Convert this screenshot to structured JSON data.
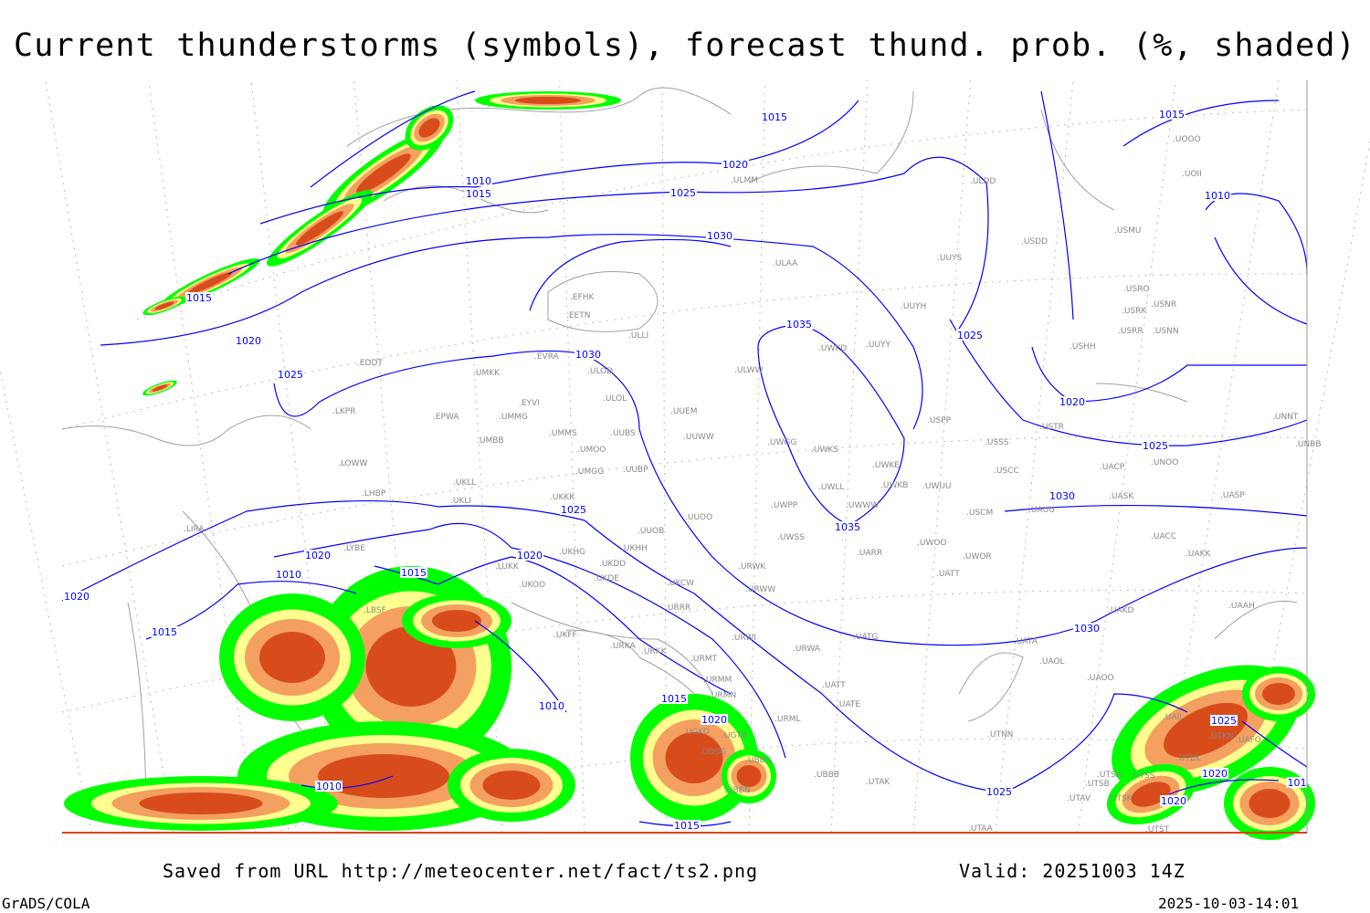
{
  "title": "Current thunderstorms (symbols), forecast thund. prob. (%, shaded)",
  "footer": {
    "source": "Saved from URL http://meteocenter.net/fact/ts2.png",
    "valid": "Valid: 20251003 14Z",
    "software": "GrADS/COLA",
    "timestamp": "2025-10-03-14:01"
  },
  "colors": {
    "isobar": "#0000ff",
    "coastline": "#a0a0a0",
    "prob_low": "#00ff00",
    "prob_mid": "#ffff90",
    "prob_high": "#f4a060",
    "prob_max": "#d84c1c",
    "frame": "#e04010"
  },
  "stations": [
    "EFHK",
    "EETN",
    "ULLI",
    "EVRA",
    "ULOD",
    "UMKK",
    "EDDT",
    "EYVI",
    "ULOL",
    "UUEM",
    "LKPR",
    "EPWA",
    "UMMG",
    "UMMS",
    "UMOO",
    "UUBS",
    "UUWW",
    "UMBB",
    "LOWW",
    "UMGG",
    "UUBP",
    "UKLL",
    "LHBP",
    "UKLI",
    "UKKK",
    "UUOO",
    "UUOB",
    "LIRA",
    "LYBE",
    "UKHG",
    "UKDD",
    "UKHH",
    "UKDE",
    "LUKK",
    "UKOO",
    "UKCW",
    "URRR",
    "LBSF",
    "UKFF",
    "URKA",
    "URKK",
    "URMT",
    "URWI",
    "URMM",
    "URMN",
    "UGKO",
    "UGTB",
    "UDSG",
    "UBBG",
    "UBBB",
    "UBBN",
    "URML",
    "UATG",
    "URWA",
    "UATE",
    "UATT",
    "UTAK",
    "UTNN",
    "UTAA",
    "UATA",
    "UAOL",
    "UAOO",
    "UAKD",
    "UAAH",
    "UAKK",
    "UACC",
    "UASP",
    "UASK",
    "UACP",
    "UNOO",
    "UNNT",
    "UNBB",
    "USTR",
    "USSS",
    "USCC",
    "USCM",
    "UAUU",
    "UWOO",
    "UWOR",
    "UATT",
    "UARR",
    "UWSS",
    "URWW",
    "URWK",
    "UWPP",
    "UWWW",
    "UWLL",
    "UWKE",
    "UWKB",
    "UWUU",
    "UWGG",
    "UWKS",
    "UWKD",
    "UUYY",
    "ULWW",
    "UUYH",
    "UUYS",
    "ULAA",
    "ULMM",
    "ULDD",
    "USDD",
    "USMU",
    "UOII",
    "UOOO",
    "USRR",
    "USNN",
    "USRK",
    "USNR",
    "USRO",
    "USHH",
    "USPP",
    "UTSA",
    "UTSS",
    "UTSB",
    "UTAV",
    "UTSK",
    "UTST",
    "UTDL",
    "UAII",
    "UTKN",
    "UAFO"
  ],
  "isobar_labels": [
    "1015",
    "1015",
    "1020",
    "1010",
    "1015",
    "1025",
    "1030",
    "1010",
    "1015",
    "1020",
    "1025",
    "1030",
    "1035",
    "1025",
    "1020",
    "1025",
    "1030",
    "1025",
    "1035",
    "1020",
    "1015",
    "1010",
    "1020",
    "1020",
    "1015",
    "1010",
    "1015",
    "1020",
    "1030",
    "1025",
    "1015",
    "1010",
    "1025",
    "1020",
    "1020",
    "101"
  ]
}
